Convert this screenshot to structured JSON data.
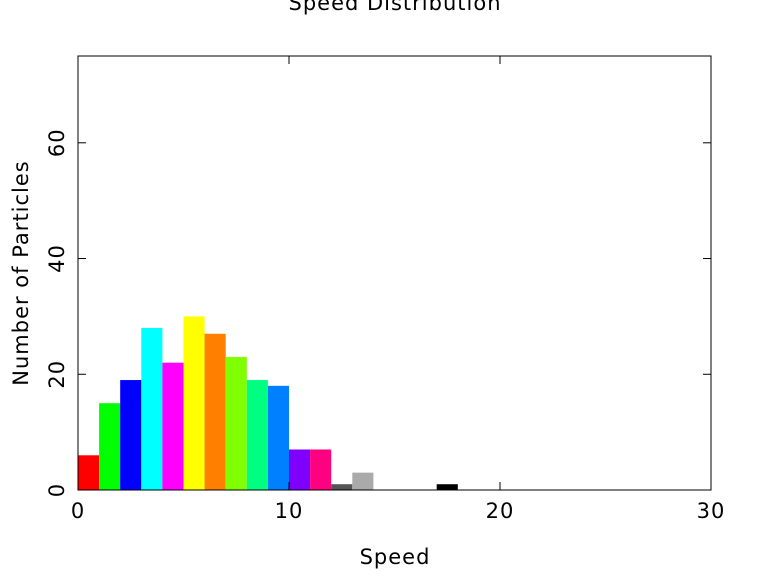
{
  "chart_data": {
    "type": "bar",
    "title": "Speed Distribution",
    "xlabel": "Speed",
    "ylabel": "Number of Particles",
    "xlim": [
      0,
      30
    ],
    "ylim": [
      0,
      75
    ],
    "xticks": [
      0,
      10,
      20,
      30
    ],
    "yticks": [
      0,
      20,
      40,
      60
    ],
    "xtick_labels": [
      "0",
      "10",
      "20",
      "30"
    ],
    "ytick_labels": [
      "0",
      "20",
      "40",
      "60"
    ],
    "bin_width": 1,
    "bins": [
      {
        "start": 0,
        "count": 6,
        "color": "#ff0000"
      },
      {
        "start": 1,
        "count": 15,
        "color": "#00ff00"
      },
      {
        "start": 2,
        "count": 19,
        "color": "#0000ff"
      },
      {
        "start": 3,
        "count": 28,
        "color": "#00ffff"
      },
      {
        "start": 4,
        "count": 22,
        "color": "#ff00ff"
      },
      {
        "start": 5,
        "count": 30,
        "color": "#ffff00"
      },
      {
        "start": 6,
        "count": 27,
        "color": "#ff8000"
      },
      {
        "start": 7,
        "count": 23,
        "color": "#80ff00"
      },
      {
        "start": 8,
        "count": 19,
        "color": "#00ff80"
      },
      {
        "start": 9,
        "count": 18,
        "color": "#0080ff"
      },
      {
        "start": 10,
        "count": 7,
        "color": "#8000ff"
      },
      {
        "start": 11,
        "count": 7,
        "color": "#ff0080"
      },
      {
        "start": 12,
        "count": 1,
        "color": "#555555"
      },
      {
        "start": 13,
        "count": 3,
        "color": "#aaaaaa"
      },
      {
        "start": 17,
        "count": 1,
        "color": "#000000"
      }
    ],
    "grid": false,
    "legend": "none"
  }
}
